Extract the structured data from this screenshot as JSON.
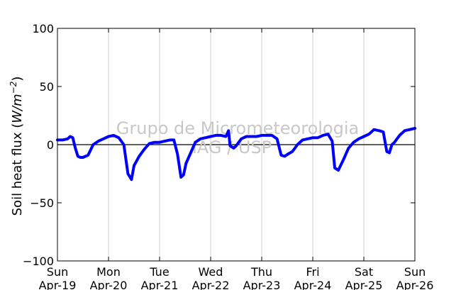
{
  "chart_data": {
    "type": "line",
    "title": "",
    "ylabel": "Soil heat flux (W/m⁻²)",
    "ylabel_parts": {
      "prefix": "Soil heat flux (",
      "unit": "W/m",
      "exp": "−2",
      "suffix": ")"
    },
    "xlabel": "",
    "ylim": [
      -100,
      100
    ],
    "xlim": [
      0,
      7
    ],
    "yticks": [
      {
        "value": 100,
        "label": "100"
      },
      {
        "value": 50,
        "label": "50"
      },
      {
        "value": 0,
        "label": "0"
      },
      {
        "value": -50,
        "label": "−50"
      },
      {
        "value": -100,
        "label": "−100"
      }
    ],
    "xticks": [
      {
        "value": 0,
        "day": "Sun",
        "date": "Apr-19"
      },
      {
        "value": 1,
        "day": "Mon",
        "date": "Apr-20"
      },
      {
        "value": 2,
        "day": "Tue",
        "date": "Apr-21"
      },
      {
        "value": 3,
        "day": "Wed",
        "date": "Apr-22"
      },
      {
        "value": 4,
        "day": "Thu",
        "date": "Apr-23"
      },
      {
        "value": 5,
        "day": "Fri",
        "date": "Apr-24"
      },
      {
        "value": 6,
        "day": "Sat",
        "date": "Apr-25"
      },
      {
        "value": 7,
        "day": "Sun",
        "date": "Apr-26"
      }
    ],
    "grid": "vertical",
    "zero_line": true,
    "watermark": [
      "Grupo de Micrometeorologia",
      "IAG / USP"
    ],
    "series": [
      {
        "color": "#0000ff",
        "x": [
          0,
          0.1,
          0.2,
          0.25,
          0.3,
          0.35,
          0.4,
          0.45,
          0.5,
          0.6,
          0.7,
          0.8,
          0.9,
          1.0,
          1.1,
          1.2,
          1.3,
          1.38,
          1.45,
          1.5,
          1.55,
          1.6,
          1.7,
          1.8,
          1.9,
          2.0,
          2.1,
          2.2,
          2.28,
          2.35,
          2.42,
          2.47,
          2.52,
          2.6,
          2.7,
          2.8,
          2.9,
          3.0,
          3.1,
          3.2,
          3.3,
          3.35,
          3.38,
          3.42,
          3.45,
          3.5,
          3.6,
          3.7,
          3.8,
          3.9,
          4.0,
          4.1,
          4.2,
          4.3,
          4.38,
          4.45,
          4.52,
          4.6,
          4.7,
          4.8,
          4.9,
          5.0,
          5.1,
          5.2,
          5.3,
          5.38,
          5.43,
          5.5,
          5.6,
          5.7,
          5.8,
          5.9,
          6.0,
          6.1,
          6.2,
          6.3,
          6.38,
          6.45,
          6.5,
          6.55,
          6.6,
          6.7,
          6.8,
          6.9,
          7.0
        ],
        "y": [
          4,
          4,
          5,
          7,
          6,
          -3,
          -10,
          -11,
          -11,
          -9,
          0,
          3,
          5,
          7,
          8,
          6,
          0,
          -25,
          -30,
          -18,
          -14,
          -10,
          -4,
          1,
          2,
          2,
          3,
          4,
          4,
          -8,
          -28,
          -26,
          -16,
          -8,
          2,
          5,
          6,
          7,
          8,
          8,
          7,
          12,
          -1,
          -2,
          -3,
          -1,
          5,
          7,
          7,
          7,
          8,
          8,
          8,
          5,
          -9,
          -10,
          -8,
          -6,
          0,
          4,
          5,
          6,
          6,
          8,
          9,
          3,
          -20,
          -22,
          -13,
          -3,
          2,
          5,
          7,
          9,
          13,
          12,
          11,
          -6,
          -7,
          0,
          2,
          8,
          12,
          13,
          14
        ]
      }
    ]
  }
}
